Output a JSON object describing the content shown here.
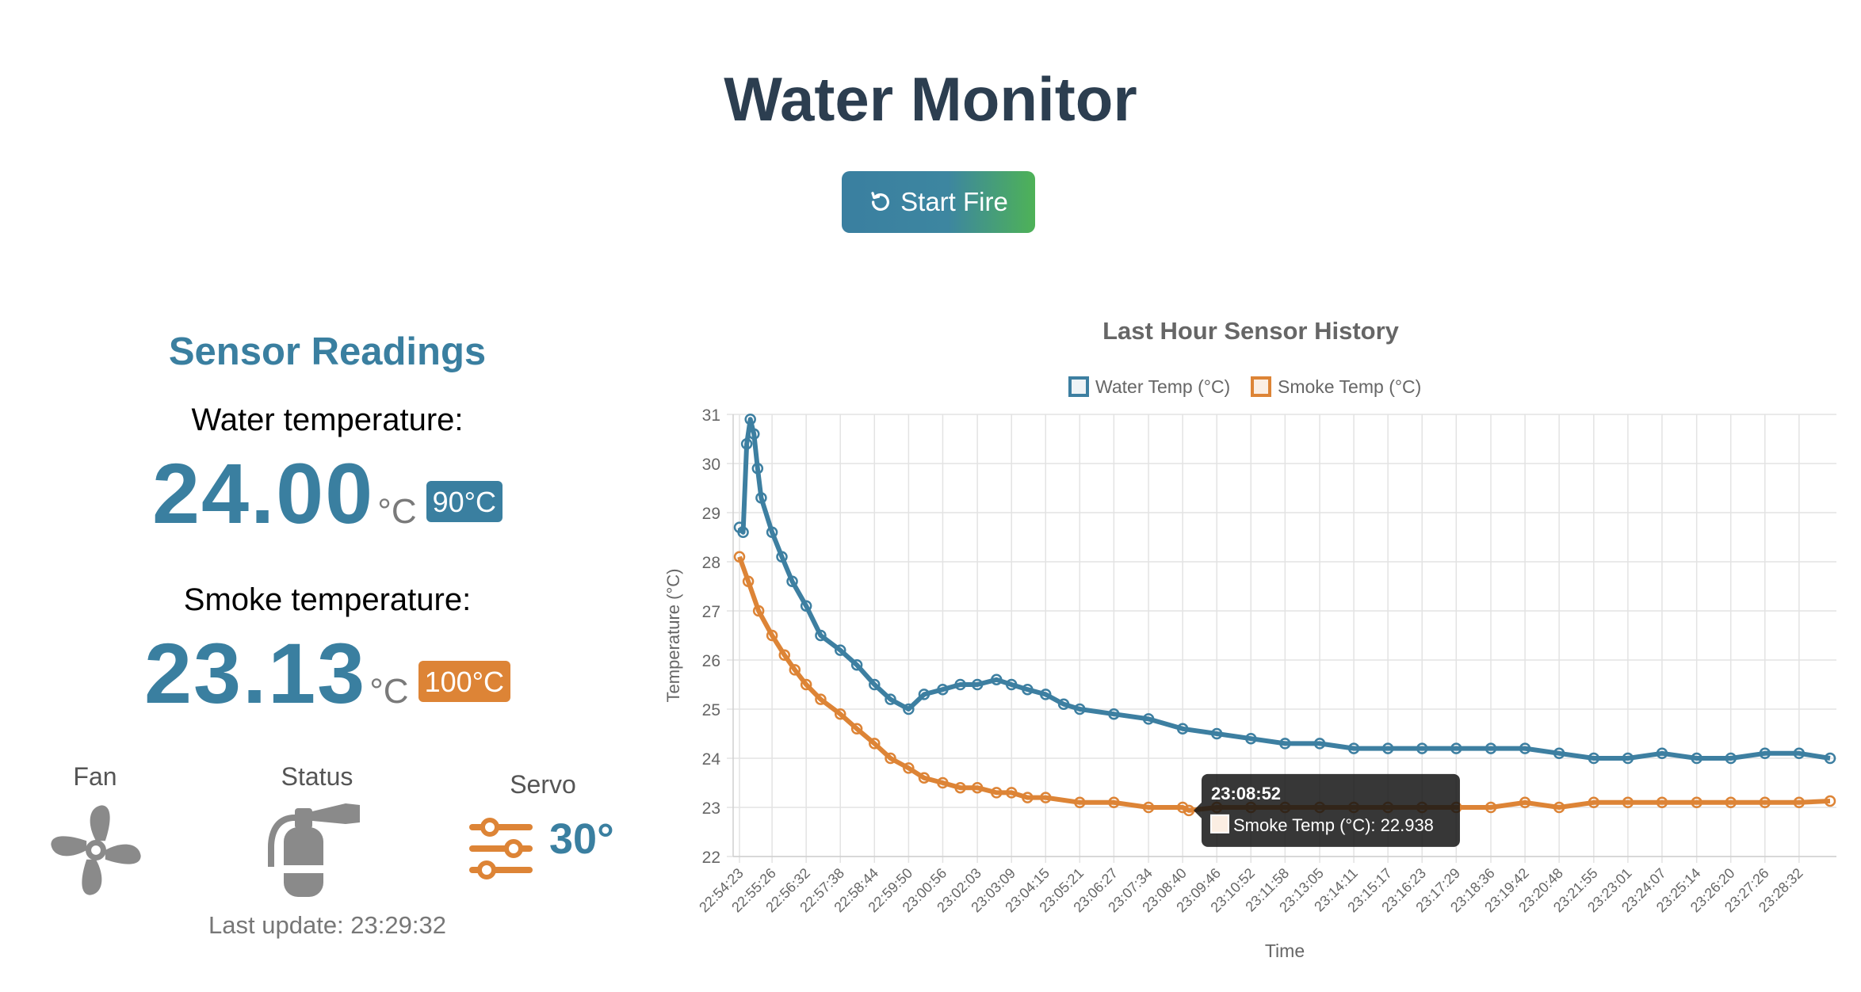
{
  "header": {
    "title": "Water Monitor",
    "button_label": "Start Fire",
    "button_icon": "refresh-icon"
  },
  "sensors": {
    "title": "Sensor Readings",
    "water": {
      "label": "Water temperature:",
      "value": "24.00",
      "unit": "°C",
      "threshold": "90°C"
    },
    "smoke": {
      "label": "Smoke temperature:",
      "value": "23.13",
      "unit": "°C",
      "threshold": "100°C"
    },
    "fan": {
      "label": "Fan",
      "icon": "fan-icon"
    },
    "status": {
      "label": "Status",
      "icon": "fire-extinguisher-icon"
    },
    "servo": {
      "label": "Servo",
      "value": "30°",
      "icon": "sliders-icon"
    },
    "last_update": "Last update: 23:29:32"
  },
  "colors": {
    "primary": "#3a7fa0",
    "water": "#3d7fa1",
    "smoke": "#dd8436",
    "title": "#2c3e50"
  },
  "chart_data": {
    "type": "line",
    "title": "Last Hour Sensor History",
    "xlabel": "Time",
    "ylabel": "Temperature (°C)",
    "ylim": [
      22,
      31
    ],
    "yticks": [
      "31",
      "30",
      "29",
      "28",
      "27",
      "26",
      "25",
      "24",
      "23",
      "22"
    ],
    "xticks": [
      "22:54:23",
      "22:55:26",
      "22:56:32",
      "22:57:38",
      "22:58:44",
      "22:59:50",
      "23:00:56",
      "23:02:03",
      "23:03:09",
      "23:04:15",
      "23:05:21",
      "23:06:27",
      "23:07:34",
      "23:08:40",
      "23:09:46",
      "23:10:52",
      "23:11:58",
      "23:13:05",
      "23:14:11",
      "23:15:17",
      "23:16:23",
      "23:17:29",
      "23:18:36",
      "23:19:42",
      "23:20:48",
      "23:21:55",
      "23:23:01",
      "23:24:07",
      "23:25:14",
      "23:26:20",
      "23:27:26",
      "23:28:32"
    ],
    "legend": "top",
    "grid": true,
    "series": [
      {
        "name": "Water Temp (°C)",
        "color": "#3d7fa1",
        "x": [
          "22:54:23",
          "22:54:30",
          "22:54:37",
          "22:54:44",
          "22:54:51",
          "22:54:58",
          "22:55:05",
          "22:55:26",
          "22:55:45",
          "22:56:05",
          "22:56:32",
          "22:57:00",
          "22:57:38",
          "22:58:10",
          "22:58:44",
          "22:59:15",
          "22:59:50",
          "23:00:20",
          "23:00:56",
          "23:01:30",
          "23:02:03",
          "23:02:40",
          "23:03:09",
          "23:03:40",
          "23:04:15",
          "23:04:50",
          "23:05:21",
          "23:06:27",
          "23:07:34",
          "23:08:40",
          "23:09:46",
          "23:10:52",
          "23:11:58",
          "23:13:05",
          "23:14:11",
          "23:15:17",
          "23:16:23",
          "23:17:29",
          "23:18:36",
          "23:19:42",
          "23:20:48",
          "23:21:55",
          "23:23:01",
          "23:24:07",
          "23:25:14",
          "23:26:20",
          "23:27:26",
          "23:28:32",
          "23:29:32"
        ],
        "values": [
          28.7,
          28.6,
          30.4,
          30.9,
          30.6,
          29.9,
          29.3,
          28.6,
          28.1,
          27.6,
          27.1,
          26.5,
          26.2,
          25.9,
          25.5,
          25.2,
          25.0,
          25.3,
          25.4,
          25.5,
          25.5,
          25.6,
          25.5,
          25.4,
          25.3,
          25.1,
          25.0,
          24.9,
          24.8,
          24.6,
          24.5,
          24.4,
          24.3,
          24.3,
          24.2,
          24.2,
          24.2,
          24.2,
          24.2,
          24.2,
          24.1,
          24.0,
          24.0,
          24.1,
          24.0,
          24.0,
          24.1,
          24.1,
          24.0
        ]
      },
      {
        "name": "Smoke Temp (°C)",
        "color": "#dd8436",
        "x": [
          "22:54:23",
          "22:54:40",
          "22:55:00",
          "22:55:26",
          "22:55:50",
          "22:56:10",
          "22:56:32",
          "22:57:00",
          "22:57:38",
          "22:58:10",
          "22:58:44",
          "22:59:15",
          "22:59:50",
          "23:00:20",
          "23:00:56",
          "23:01:30",
          "23:02:03",
          "23:02:40",
          "23:03:09",
          "23:03:40",
          "23:04:15",
          "23:05:21",
          "23:06:27",
          "23:07:34",
          "23:08:40",
          "23:08:52",
          "23:09:46",
          "23:10:52",
          "23:11:58",
          "23:13:05",
          "23:14:11",
          "23:15:17",
          "23:16:23",
          "23:17:29",
          "23:18:36",
          "23:19:42",
          "23:20:48",
          "23:21:55",
          "23:23:01",
          "23:24:07",
          "23:25:14",
          "23:26:20",
          "23:27:26",
          "23:28:32",
          "23:29:32"
        ],
        "values": [
          28.1,
          27.6,
          27.0,
          26.5,
          26.1,
          25.8,
          25.5,
          25.2,
          24.9,
          24.6,
          24.3,
          24.0,
          23.8,
          23.6,
          23.5,
          23.4,
          23.4,
          23.3,
          23.3,
          23.2,
          23.2,
          23.1,
          23.1,
          23.0,
          23.0,
          22.938,
          23.0,
          23.0,
          23.0,
          23.0,
          23.0,
          23.0,
          23.0,
          23.0,
          23.0,
          23.1,
          23.0,
          23.1,
          23.1,
          23.1,
          23.1,
          23.1,
          23.1,
          23.1,
          23.13
        ]
      }
    ],
    "tooltip": {
      "title": "23:08:52",
      "label": "Smoke Temp (°C): 22.938"
    }
  }
}
